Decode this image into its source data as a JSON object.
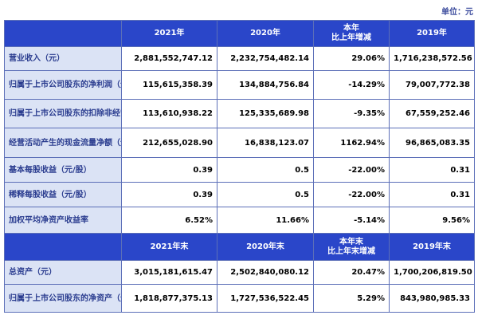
{
  "unit_label": "单位：元",
  "header1": {
    "col1": "2021年",
    "col2": "2020年",
    "col3_line1": "本年",
    "col3_line2": "比上年增减",
    "col4": "2019年"
  },
  "rows1": [
    {
      "label": "营业收入（元）",
      "v2021": "2,881,552,747.12",
      "v2020": "2,232,754,482.14",
      "change": "29.06%",
      "v2019": "1,716,238,572.56"
    },
    {
      "label": "归属于上市公司股东的净利润（元）",
      "v2021": "115,615,358.39",
      "v2020": "134,884,756.84",
      "change": "-14.29%",
      "v2019": "79,007,772.38"
    },
    {
      "label": "归属于上市公司股东的扣除非经常性损益的净利润",
      "v2021": "113,610,938.22",
      "v2020": "125,335,689.98",
      "change": "-9.35%",
      "v2019": "67,559,252.46"
    },
    {
      "label": "经营活动产生的现金流量净额（元）",
      "v2021": "212,655,028.90",
      "v2020": "16,838,123.07",
      "change": "1162.94%",
      "v2019": "96,865,083.35"
    },
    {
      "label": "基本每股收益（元/股）",
      "v2021": "0.39",
      "v2020": "0.5",
      "change": "-22.00%",
      "v2019": "0.31"
    },
    {
      "label": "稀释每股收益（元/股）",
      "v2021": "0.39",
      "v2020": "0.5",
      "change": "-22.00%",
      "v2019": "0.31"
    },
    {
      "label": "加权平均净资产收益率",
      "v2021": "6.52%",
      "v2020": "11.66%",
      "change": "-5.14%",
      "v2019": "9.56%"
    }
  ],
  "header2": {
    "col1": "2021年末",
    "col2": "2020年末",
    "col3_line1": "本年末",
    "col3_line2": "比上年末增减",
    "col4": "2019年末"
  },
  "rows2": [
    {
      "label": "总资产（元）",
      "v2021": "3,015,181,615.47",
      "v2020": "2,502,840,080.12",
      "change": "20.47%",
      "v2019": "1,700,206,819.50"
    },
    {
      "label": "归属于上市公司股东的净资产（元）",
      "v2021": "1,818,877,375.13",
      "v2020": "1,727,536,522.45",
      "change": "5.29%",
      "v2019": "843,980,985.33"
    }
  ]
}
